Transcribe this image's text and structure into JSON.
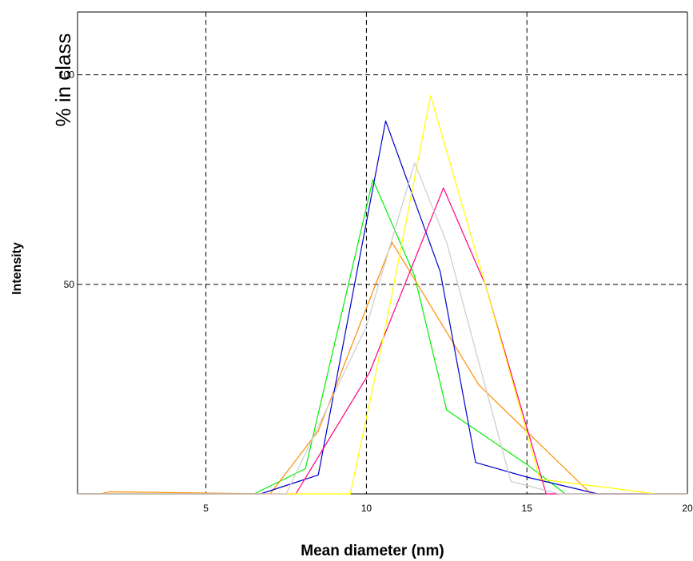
{
  "chart_data": {
    "type": "line",
    "xlabel": "Mean diameter (nm)",
    "ylabel": "Intensity",
    "inner_label": "% in class",
    "xlim": [
      1,
      20
    ],
    "ylim": [
      0,
      115
    ],
    "x_ticks": [
      5,
      10,
      15,
      20
    ],
    "y_ticks": [
      50,
      100
    ],
    "x_tick_labels": [
      "5",
      "10",
      "15",
      "20"
    ],
    "y_tick_labels": [
      "50",
      "100"
    ],
    "grid": true,
    "series": [
      {
        "color": "#00ee00",
        "x": [
          1,
          6.5,
          8.1,
          10.2,
          11.5,
          12.5,
          15,
          16.2,
          20
        ],
        "y": [
          0,
          0,
          6,
          75,
          52,
          20,
          7,
          0,
          0
        ]
      },
      {
        "color": "#ff8c00",
        "x": [
          1,
          1.7,
          2.0,
          7.0,
          8.5,
          10.8,
          13.5,
          17.0,
          20
        ],
        "y": [
          0,
          0,
          0.5,
          0,
          15,
          60,
          26,
          0,
          0
        ]
      },
      {
        "color": "#0000cc",
        "x": [
          1,
          6.7,
          8.5,
          10.6,
          12.3,
          13.4,
          15,
          17.2,
          20
        ],
        "y": [
          0,
          0,
          4.5,
          89,
          53,
          7.5,
          4,
          0,
          0
        ]
      },
      {
        "color": "#ff0080",
        "x": [
          1,
          7.8,
          10.1,
          12.4,
          13.7,
          15.6,
          20
        ],
        "y": [
          0,
          0,
          29,
          73,
          50,
          0,
          0
        ]
      },
      {
        "color": "#ffff00",
        "x": [
          1,
          9.5,
          10.6,
          12.0,
          13.7,
          15.4,
          17.5,
          19.0,
          20
        ],
        "y": [
          0,
          0,
          40,
          95,
          50,
          3.5,
          1.5,
          0,
          0
        ]
      },
      {
        "color": "#cccccc",
        "x": [
          1,
          7.5,
          10.0,
          11.5,
          12.5,
          14.5,
          16.0,
          20
        ],
        "y": [
          0,
          0,
          40,
          79,
          60,
          3,
          0,
          0
        ]
      }
    ]
  }
}
